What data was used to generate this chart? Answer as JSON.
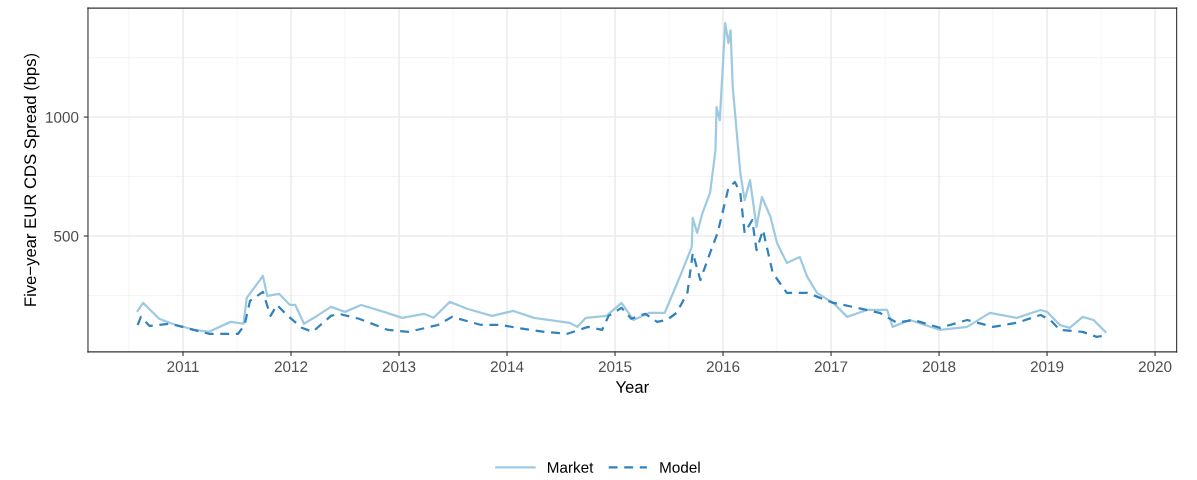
{
  "chart_data": {
    "type": "line",
    "xlabel": "Year",
    "ylabel": "Five−year EUR CDS Spread (bps)",
    "xlim": [
      2010.12,
      2020.2
    ],
    "ylim": [
      13,
      1458
    ],
    "xticks": [
      2011,
      2012,
      2013,
      2014,
      2015,
      2016,
      2017,
      2018,
      2019,
      2020
    ],
    "yticks": [
      500,
      1000
    ],
    "grid": true,
    "legend": "bottom",
    "series": [
      {
        "name": "Market",
        "color": "#9ecae1",
        "line_style": "solid",
        "x": [
          2010.58,
          2010.63,
          2010.78,
          2010.9,
          2011.11,
          2011.24,
          2011.44,
          2011.56,
          2011.59,
          2011.74,
          2011.78,
          2011.89,
          2011.99,
          2012.04,
          2012.12,
          2012.24,
          2012.37,
          2012.5,
          2012.65,
          2012.86,
          2013.03,
          2013.23,
          2013.32,
          2013.47,
          2013.63,
          2013.86,
          2014.06,
          2014.25,
          2014.58,
          2014.65,
          2014.73,
          2014.92,
          2015.06,
          2015.17,
          2015.32,
          2015.46,
          2015.51,
          2015.6,
          2015.71,
          2015.72,
          2015.76,
          2015.81,
          2015.88,
          2015.93,
          2015.94,
          2015.97,
          2016.02,
          2016.05,
          2016.07,
          2016.09,
          2016.16,
          2016.2,
          2016.25,
          2016.31,
          2016.36,
          2016.44,
          2016.5,
          2016.59,
          2016.71,
          2016.78,
          2016.87,
          2017.02,
          2017.15,
          2017.33,
          2017.52,
          2017.57,
          2017.73,
          2018.01,
          2018.26,
          2018.47,
          2018.72,
          2018.94,
          2019.0,
          2019.12,
          2019.21,
          2019.33,
          2019.43,
          2019.54
        ],
        "values": [
          185,
          219,
          152,
          131,
          105,
          97,
          139,
          131,
          240,
          332,
          248,
          257,
          210,
          210,
          131,
          164,
          202,
          181,
          210,
          181,
          156,
          173,
          156,
          223,
          194,
          164,
          185,
          156,
          135,
          118,
          156,
          164,
          219,
          147,
          177,
          177,
          231,
          328,
          454,
          576,
          513,
          597,
          681,
          861,
          1042,
          987,
          1395,
          1311,
          1365,
          1126,
          765,
          651,
          735,
          538,
          664,
          580,
          471,
          387,
          412,
          328,
          261,
          219,
          160,
          189,
          189,
          118,
          147,
          105,
          118,
          177,
          156,
          189,
          181,
          126,
          114,
          160,
          147,
          97
        ]
      },
      {
        "name": "Model",
        "color": "#3182bd",
        "line_style": "dashed",
        "x": [
          2010.58,
          2010.61,
          2010.69,
          2010.88,
          2011.24,
          2011.51,
          2011.57,
          2011.62,
          2011.74,
          2011.81,
          2011.87,
          2011.97,
          2012.1,
          2012.2,
          2012.37,
          2012.44,
          2012.63,
          2012.9,
          2013.09,
          2013.36,
          2013.49,
          2013.76,
          2013.95,
          2014.09,
          2014.35,
          2014.56,
          2014.75,
          2014.88,
          2014.94,
          2015.06,
          2015.15,
          2015.28,
          2015.39,
          2015.48,
          2015.57,
          2015.67,
          2015.72,
          2015.79,
          2015.88,
          2015.95,
          2016.05,
          2016.11,
          2016.16,
          2016.2,
          2016.27,
          2016.31,
          2016.37,
          2016.46,
          2016.59,
          2016.78,
          2017.02,
          2017.2,
          2017.45,
          2017.61,
          2017.76,
          2018.01,
          2018.26,
          2018.5,
          2018.72,
          2018.94,
          2019.03,
          2019.12,
          2019.33,
          2019.46,
          2019.56
        ],
        "values": [
          126,
          160,
          122,
          131,
          89,
          89,
          126,
          227,
          265,
          164,
          210,
          164,
          114,
          97,
          164,
          173,
          152,
          105,
          97,
          126,
          160,
          126,
          126,
          114,
          97,
          89,
          118,
          105,
          164,
          198,
          152,
          173,
          139,
          147,
          177,
          261,
          429,
          315,
          429,
          513,
          702,
          727,
          681,
          513,
          567,
          441,
          525,
          345,
          261,
          261,
          219,
          202,
          177,
          135,
          147,
          114,
          147,
          118,
          135,
          168,
          147,
          105,
          97,
          76,
          84
        ]
      }
    ]
  }
}
